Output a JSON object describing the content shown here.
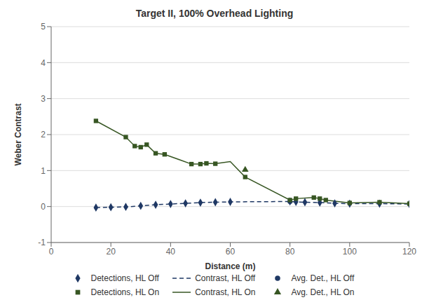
{
  "chart_data": {
    "type": "line",
    "title": "Target II, 100% Overhead Lighting",
    "xlabel": "Distance (m)",
    "ylabel": "Weber Contrast",
    "xlim": [
      0,
      120
    ],
    "ylim": [
      -1,
      5
    ],
    "xticks": [
      0,
      20,
      40,
      60,
      80,
      100,
      120
    ],
    "yticks": [
      -1,
      0,
      1,
      2,
      3,
      4,
      5
    ],
    "grid": true,
    "legend": "bottom",
    "series": [
      {
        "name": "Detections, HL Off",
        "type": "scatter",
        "color": "#1f3864",
        "marker": "diamond",
        "x": [
          15,
          20,
          25,
          30,
          35,
          40,
          45,
          50,
          55,
          60,
          80,
          82,
          85,
          90,
          95,
          100,
          110,
          120
        ],
        "values": [
          -0.03,
          -0.02,
          -0.01,
          0.02,
          0.05,
          0.07,
          0.09,
          0.11,
          0.12,
          0.13,
          0.14,
          0.13,
          0.12,
          0.11,
          0.09,
          0.08,
          0.08,
          0.07
        ]
      },
      {
        "name": "Contrast, HL Off",
        "type": "line",
        "color": "#1f3864",
        "line_style": "dashed",
        "x": [
          15,
          20,
          25,
          30,
          35,
          40,
          45,
          50,
          55,
          60,
          80,
          82,
          85,
          90,
          95,
          100,
          110,
          120
        ],
        "values": [
          -0.03,
          -0.02,
          -0.01,
          0.02,
          0.05,
          0.07,
          0.09,
          0.11,
          0.12,
          0.13,
          0.14,
          0.13,
          0.12,
          0.11,
          0.09,
          0.08,
          0.08,
          0.07
        ]
      },
      {
        "name": "Avg. Det., HL Off",
        "type": "scatter",
        "color": "#1f3864",
        "marker": "circle",
        "x": [
          80
        ],
        "values": [
          0.14
        ]
      },
      {
        "name": "Detections, HL On",
        "type": "scatter",
        "color": "#375623",
        "marker": "square",
        "x": [
          15,
          25,
          28,
          30,
          32,
          35,
          38,
          47,
          50,
          52,
          55,
          65,
          80,
          82,
          88,
          90,
          92,
          100,
          110,
          120
        ],
        "values": [
          2.38,
          1.93,
          1.68,
          1.65,
          1.72,
          1.48,
          1.45,
          1.18,
          1.18,
          1.2,
          1.19,
          0.82,
          0.18,
          0.22,
          0.25,
          0.22,
          0.18,
          0.1,
          0.12,
          0.08
        ]
      },
      {
        "name": "Contrast, HL On",
        "type": "line",
        "color": "#375623",
        "line_style": "solid",
        "x": [
          15,
          25,
          28,
          30,
          32,
          35,
          38,
          47,
          50,
          52,
          55,
          60,
          65,
          80,
          82,
          88,
          90,
          92,
          100,
          110,
          120
        ],
        "values": [
          2.38,
          1.93,
          1.68,
          1.65,
          1.72,
          1.48,
          1.45,
          1.18,
          1.18,
          1.2,
          1.19,
          1.25,
          0.82,
          0.18,
          0.22,
          0.25,
          0.22,
          0.18,
          0.1,
          0.12,
          0.08
        ]
      },
      {
        "name": "Avg. Det., HL On",
        "type": "scatter",
        "color": "#375623",
        "marker": "triangle",
        "x": [
          65
        ],
        "values": [
          1.02
        ]
      }
    ]
  }
}
